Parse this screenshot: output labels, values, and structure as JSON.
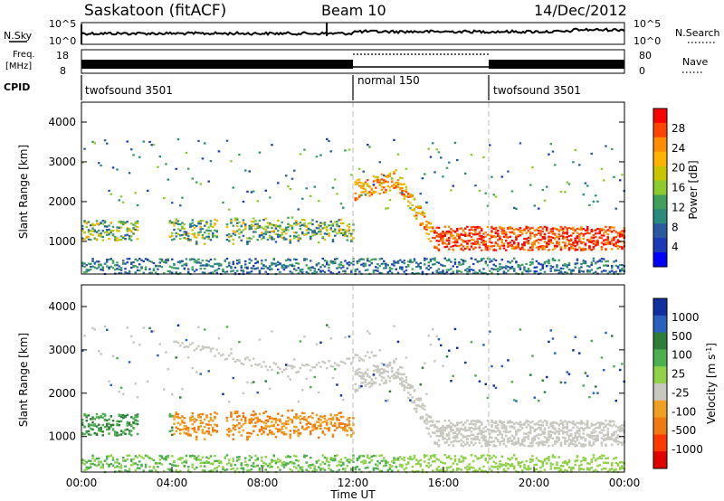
{
  "header": {
    "station": "Saskatoon (fitACF)",
    "beam": "Beam 10",
    "date": "14/Dec/2012"
  },
  "strip_panels": {
    "nsky": {
      "label": "N.Sky",
      "tick_labels": [
        "10^5",
        "10^0"
      ],
      "right_label": "N.Search",
      "right_tick_labels": [
        "10^5",
        "10^0"
      ]
    },
    "freq": {
      "label_line1": "Freq.",
      "label_line2": "[MHz]",
      "tick_labels": [
        "18",
        "8"
      ],
      "right_label": "Nave",
      "right_tick_labels": [
        "80",
        "0"
      ]
    },
    "cpid": {
      "label": "CPID",
      "segments": [
        {
          "name": "twofsound 3501",
          "start_hr": 0,
          "end_hr": 12
        },
        {
          "name": "normal 150",
          "start_hr": 12,
          "end_hr": 18
        },
        {
          "name": "twofsound 3501",
          "start_hr": 18,
          "end_hr": 24
        }
      ]
    }
  },
  "chart_data": [
    {
      "type": "heatmap",
      "panel": "power",
      "ylabel": "Slant Range [km]",
      "xlabel": "",
      "ylim": [
        180,
        4500
      ],
      "xlim_hours": [
        0,
        24
      ],
      "y_ticks": [
        "4000",
        "3000",
        "2000",
        "1000"
      ],
      "colorbar": {
        "label": "Power [dB]",
        "tick_labels": [
          "28",
          "24",
          "20",
          "16",
          "12",
          "8",
          "4"
        ],
        "colors": [
          "#ff0000",
          "#ff4500",
          "#ff8c00",
          "#ffb300",
          "#c9c400",
          "#8bcc2c",
          "#3ea05a",
          "#2a8a7e",
          "#2a5aa0",
          "#1a3ab8",
          "#0000ff"
        ]
      }
    },
    {
      "type": "heatmap",
      "panel": "velocity",
      "ylabel": "Slant Range [km]",
      "xlabel": "Time UT",
      "ylim": [
        180,
        4500
      ],
      "xlim_hours": [
        0,
        24
      ],
      "y_ticks": [
        "4000",
        "3000",
        "2000",
        "1000"
      ],
      "x_ticks": [
        "00:00",
        "04:00",
        "08:00",
        "12:00",
        "16:00",
        "20:00",
        "00:00"
      ],
      "colorbar": {
        "label": "Velocity [m s^-1]",
        "tick_labels": [
          "1000",
          "500",
          "100",
          "25",
          "-25",
          "-100",
          "-500",
          "-1000"
        ],
        "colors": [
          "#1030a0",
          "#2a60c0",
          "#2e7d3a",
          "#4caf50",
          "#8fd24a",
          "#c8c8c0",
          "#f0a020",
          "#f07a10",
          "#ff3a00",
          "#e00000"
        ]
      }
    }
  ]
}
